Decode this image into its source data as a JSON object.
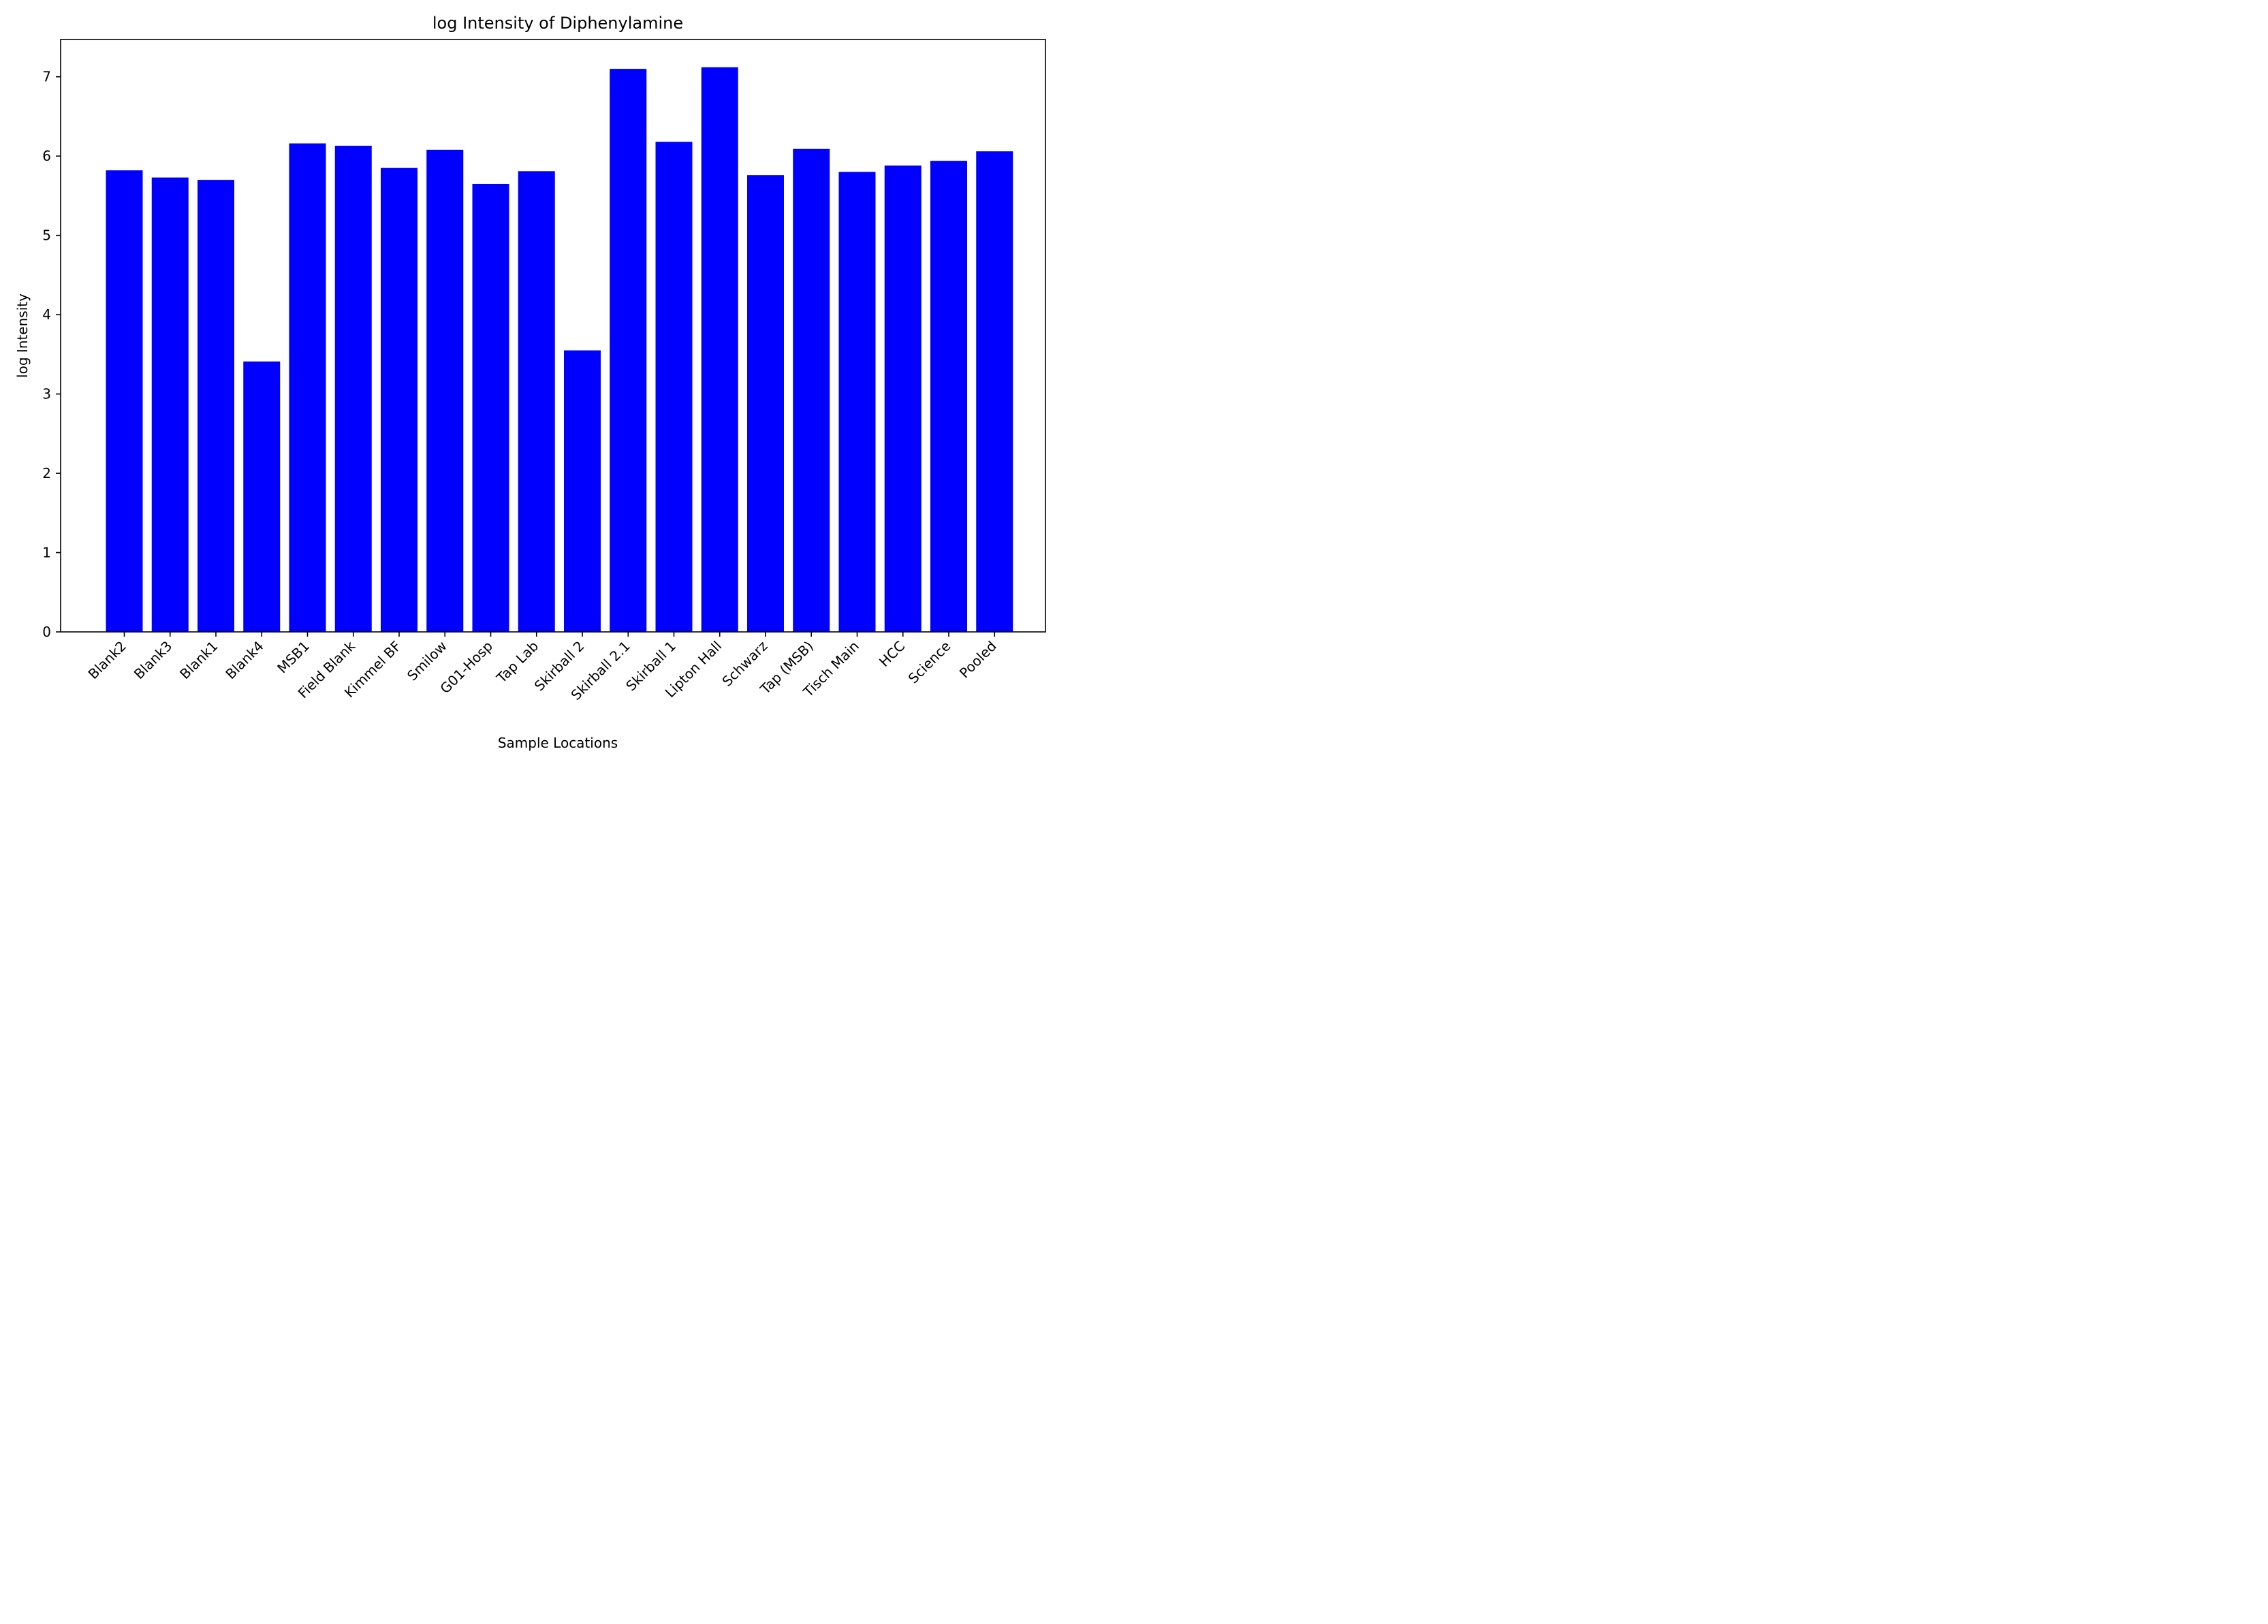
{
  "chart_data": {
    "type": "bar",
    "title": "log Intensity of Diphenylamine",
    "xlabel": "Sample Locations",
    "ylabel": "log Intensity",
    "ylim": [
      0,
      7.47
    ],
    "yticks": [
      "0",
      "1",
      "2",
      "3",
      "4",
      "5",
      "6",
      "7"
    ],
    "grid": false,
    "bar_color": "#0000ff",
    "categories": [
      "Blank2",
      "Blank3",
      "Blank1",
      "Blank4",
      "MSB1",
      "Field Blank",
      "Kimmel BF",
      "Smilow",
      "G01-Hosp",
      "Tap Lab",
      "Skirball 2",
      "Skirball 2.1",
      "Skirball 1",
      "Lipton Hall",
      "Schwarz",
      "Tap (MSB)",
      "Tisch Main",
      "HCC",
      "Science",
      "Pooled"
    ],
    "values": [
      5.82,
      5.73,
      5.7,
      3.41,
      6.16,
      6.13,
      5.85,
      6.08,
      5.65,
      5.81,
      3.55,
      7.1,
      6.18,
      7.12,
      5.76,
      6.09,
      5.8,
      5.88,
      5.94,
      6.06
    ]
  }
}
